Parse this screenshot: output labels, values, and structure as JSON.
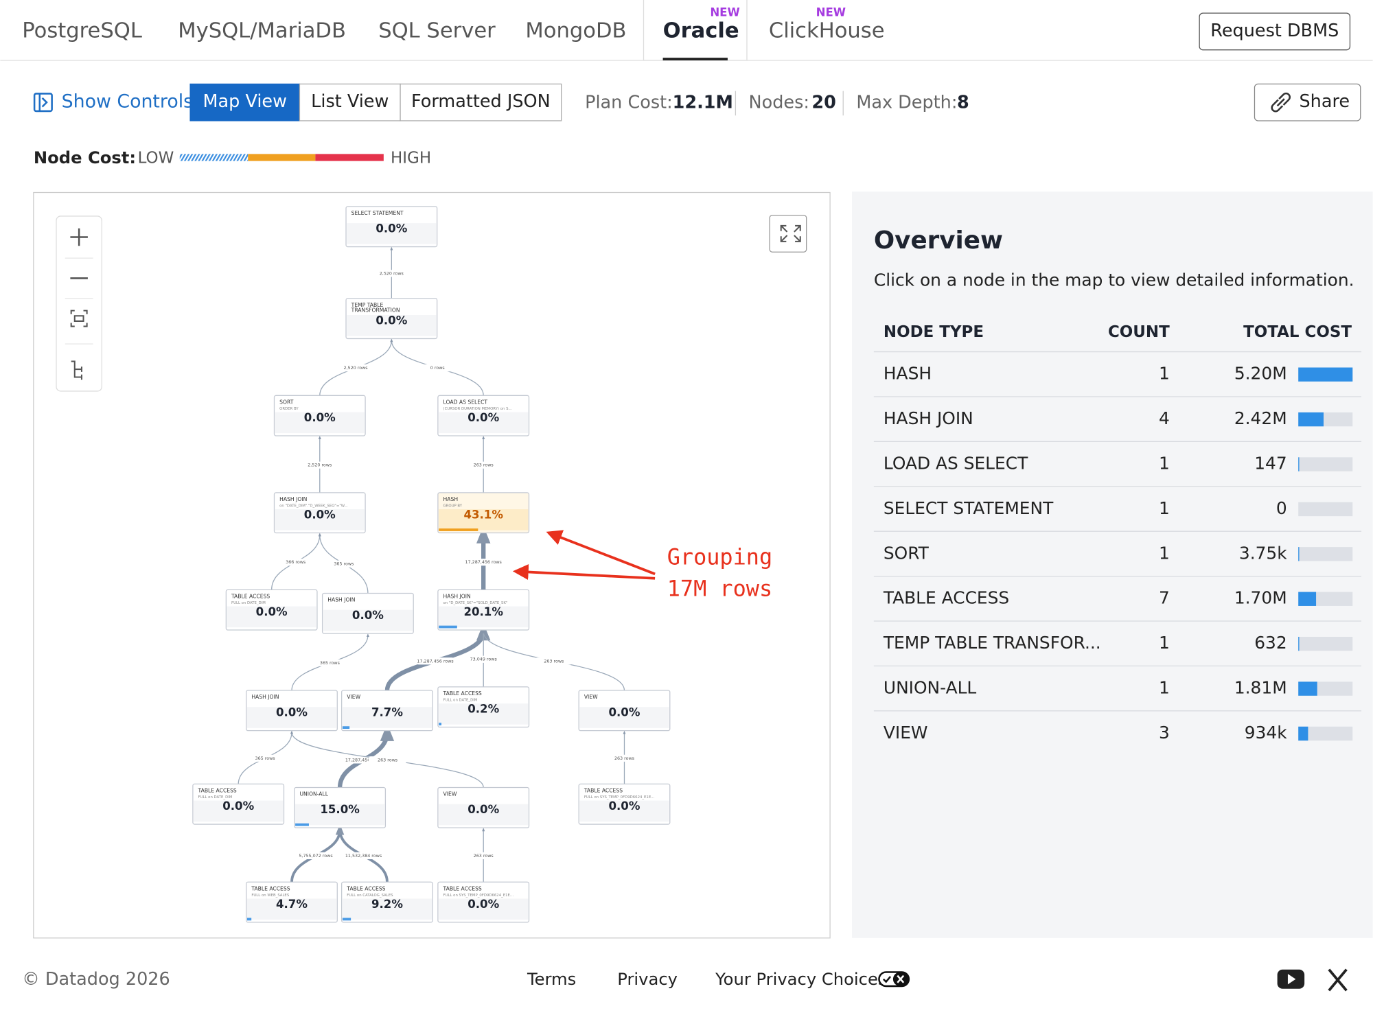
{
  "tabs": [
    {
      "label": "PostgreSQL"
    },
    {
      "label": "MySQL/MariaDB"
    },
    {
      "label": "SQL Server"
    },
    {
      "label": "MongoDB"
    },
    {
      "label": "Oracle",
      "badge": "NEW",
      "active": true
    },
    {
      "label": "ClickHouse",
      "badge": "NEW"
    }
  ],
  "request_button": "Request DBMS",
  "toolbar": {
    "show_controls": "Show Controls",
    "views": [
      {
        "label": "Map View",
        "active": true
      },
      {
        "label": "List View"
      },
      {
        "label": "Formatted JSON"
      }
    ],
    "stats": [
      {
        "label": "Plan Cost:",
        "value": "12.1M"
      },
      {
        "label": "Nodes:",
        "value": "20"
      },
      {
        "label": "Max Depth:",
        "value": "8"
      }
    ],
    "share": "Share"
  },
  "legend": {
    "label": "Node Cost:",
    "low": "LOW",
    "high": "HIGH"
  },
  "plan": {
    "nodes": [
      {
        "title": [
          "SELECT STATEMENT"
        ],
        "pct": "0.0%"
      },
      {
        "title": [
          "TEMP TABLE",
          "TRANSFORMATION"
        ],
        "pct": "0.0%"
      },
      {
        "title": [
          "SORT"
        ],
        "detail": "ORDER BY",
        "pct": "0.0%"
      },
      {
        "title": [
          "LOAD AS SELECT"
        ],
        "detail": "(CURSOR DURATION MEMORY) on S...",
        "pct": "0.0%"
      },
      {
        "title": [
          "HASH JOIN"
        ],
        "detail": "on \"DATE_DIM\".\"D_WEEK_SEQ\"=\"W...",
        "pct": "0.0%"
      },
      {
        "title": [
          "HASH"
        ],
        "detail": "GROUP BY",
        "pct": "43.1%"
      },
      {
        "title": [
          "TABLE ACCESS"
        ],
        "detail": "FULL on DATE_DIM",
        "pct": "0.0%"
      },
      {
        "title": [
          "HASH JOIN"
        ],
        "pct": "0.0%"
      },
      {
        "title": [
          "HASH JOIN"
        ],
        "detail": "on \"D_DATE_SK\"=\"SOLD_DATE_SK\"",
        "pct": "20.1%"
      },
      {
        "title": [
          "HASH JOIN"
        ],
        "pct": "0.0%"
      },
      {
        "title": [
          "VIEW"
        ],
        "pct": "7.7%"
      },
      {
        "title": [
          "TABLE ACCESS"
        ],
        "detail": "FULL on DATE_DIM",
        "pct": "0.2%"
      },
      {
        "title": [
          "VIEW"
        ],
        "pct": "0.0%"
      },
      {
        "title": [
          "TABLE ACCESS"
        ],
        "detail": "FULL on DATE_DIM",
        "pct": "0.0%"
      },
      {
        "title": [
          "UNION-ALL"
        ],
        "pct": "15.0%"
      },
      {
        "title": [
          "VIEW"
        ],
        "pct": "0.0%"
      },
      {
        "title": [
          "TABLE ACCESS"
        ],
        "detail": "FULL on SYS_TEMP_0FD9D6624_E1E...",
        "pct": "0.0%"
      },
      {
        "title": [
          "TABLE ACCESS"
        ],
        "detail": "FULL on WEB_SALES",
        "pct": "4.7%"
      },
      {
        "title": [
          "TABLE ACCESS"
        ],
        "detail": "FULL on CATALOG_SALES",
        "pct": "9.2%"
      },
      {
        "title": [
          "TABLE ACCESS"
        ],
        "detail": "FULL on SYS_TEMP_0FD9D6624_E1E...",
        "pct": "0.0%"
      }
    ],
    "edge_labels": [
      "2,520 rows",
      "2,520 rows",
      "0 rows",
      "2,520 rows",
      "263 rows",
      "366 rows",
      "365 rows",
      "17,287,456 rows",
      "365 rows",
      "17,287,456 rows",
      "73,049 rows",
      "263 rows",
      "365 rows",
      "17,287,456 rows",
      "263 rows",
      "263 rows",
      "5,755,072 rows",
      "11,532,384 rows",
      "263 rows"
    ]
  },
  "annotation": {
    "lines": [
      "Grouping",
      "17M rows"
    ]
  },
  "overview": {
    "title": "Overview",
    "description": "Click on a node in the map to view detailed information.",
    "headers": [
      "NODE TYPE",
      "COUNT",
      "TOTAL COST"
    ],
    "rows": [
      {
        "type": "HASH",
        "count": 1,
        "total_cost": {
          "value": 5200000,
          "label": "5.20M"
        }
      },
      {
        "type": "HASH JOIN",
        "count": 4,
        "total_cost": {
          "value": 2420000,
          "label": "2.42M"
        }
      },
      {
        "type": "LOAD AS SELECT",
        "count": 1,
        "total_cost": {
          "value": 147,
          "label": "147"
        }
      },
      {
        "type": "SELECT STATEMENT",
        "count": 1,
        "total_cost": {
          "value": 0,
          "label": "0"
        }
      },
      {
        "type": "SORT",
        "count": 1,
        "total_cost": {
          "value": 3750,
          "label": "3.75k"
        }
      },
      {
        "type": "TABLE ACCESS",
        "count": 7,
        "total_cost": {
          "value": 1700000,
          "label": "1.70M"
        }
      },
      {
        "type": "TEMP TABLE TRANSFOR...",
        "count": 1,
        "total_cost": {
          "value": 632,
          "label": "632"
        }
      },
      {
        "type": "UNION-ALL",
        "count": 1,
        "total_cost": {
          "value": 1810000,
          "label": "1.81M"
        }
      },
      {
        "type": "VIEW",
        "count": 3,
        "total_cost": {
          "value": 934000,
          "label": "934k"
        }
      }
    ]
  },
  "footer": {
    "copyright": "© Datadog 2026",
    "links": [
      "Terms",
      "Privacy",
      "Your Privacy Choices"
    ]
  }
}
